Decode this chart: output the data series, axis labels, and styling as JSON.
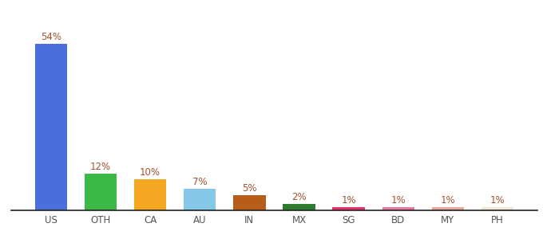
{
  "categories": [
    "US",
    "OTH",
    "CA",
    "AU",
    "IN",
    "MX",
    "SG",
    "BD",
    "MY",
    "PH"
  ],
  "values": [
    54,
    12,
    10,
    7,
    5,
    2,
    1,
    1,
    1,
    1
  ],
  "labels": [
    "54%",
    "12%",
    "10%",
    "7%",
    "5%",
    "2%",
    "1%",
    "1%",
    "1%",
    "1%"
  ],
  "bar_colors": [
    "#4a6fdc",
    "#3cb849",
    "#f5a623",
    "#85c8e8",
    "#b85c1a",
    "#2e7d2e",
    "#e83068",
    "#e8789a",
    "#e8a898",
    "#f0ead8"
  ],
  "background_color": "#ffffff",
  "label_color": "#a0522d",
  "label_fontsize": 8.5,
  "tick_fontsize": 8.5,
  "ylim": [
    0,
    62
  ],
  "bar_width": 0.65
}
